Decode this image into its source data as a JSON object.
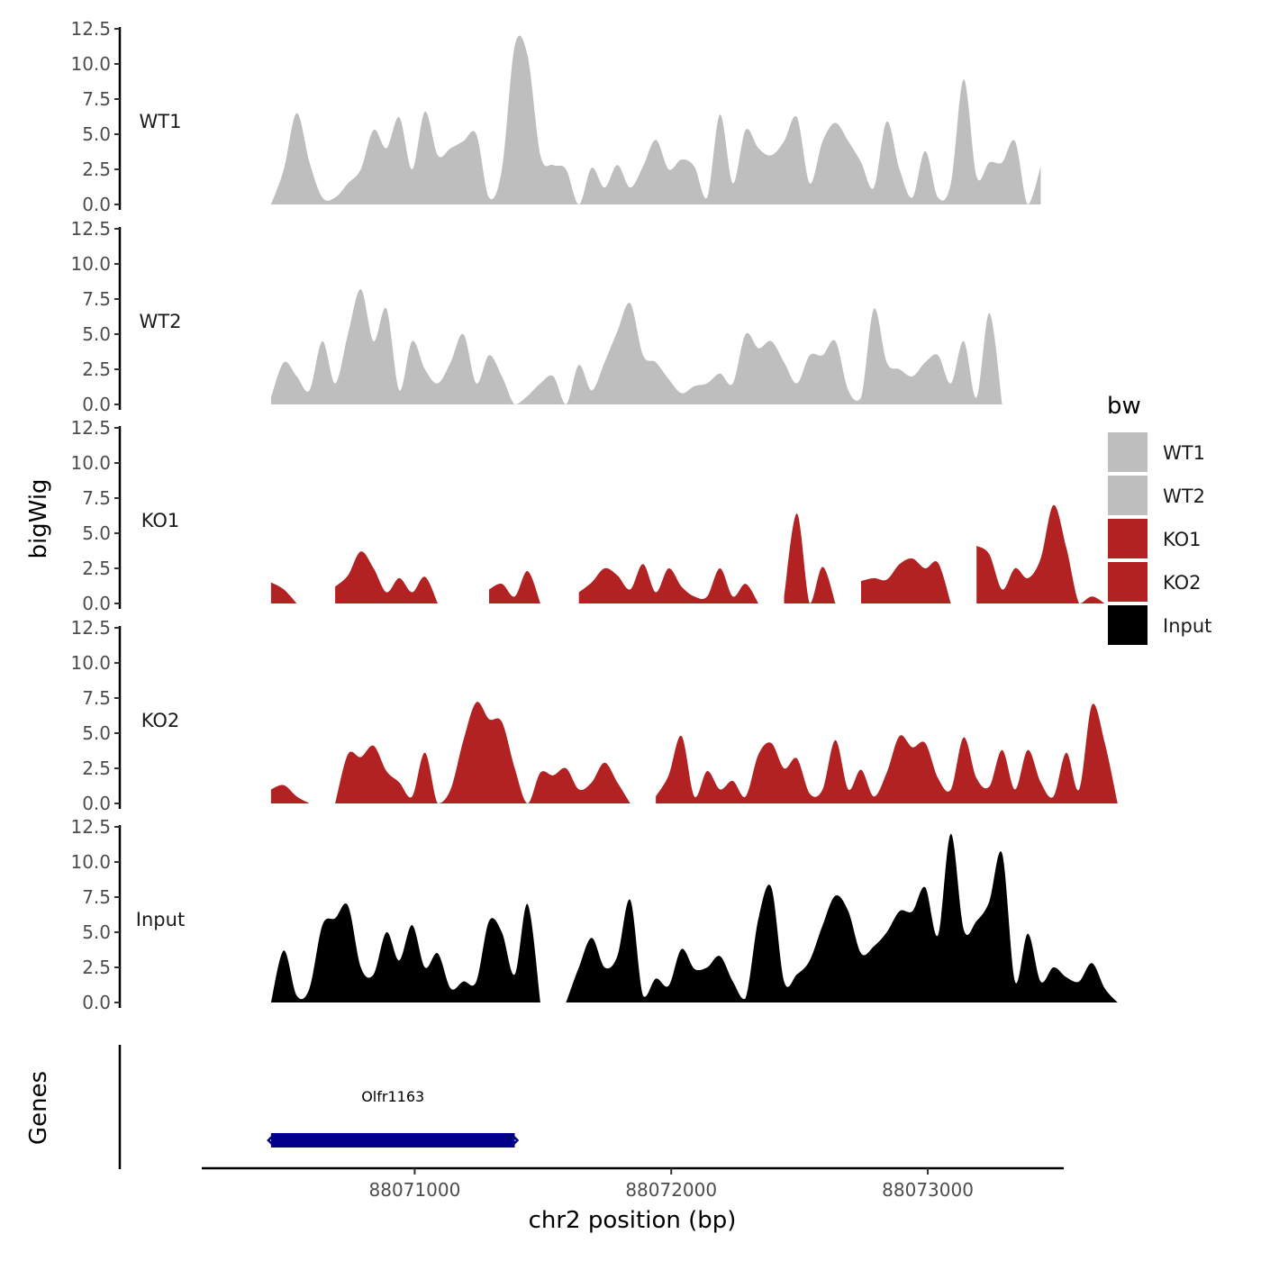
{
  "chart_data": {
    "type": "area",
    "xlabel": "chr2 position (bp)",
    "ylabel": "bigWig",
    "genes_label": "Genes",
    "xlim": [
      88070170,
      88073530
    ],
    "x_ticks": [
      {
        "value": 88071000,
        "label": "88071000"
      },
      {
        "value": 88072000,
        "label": "88072000"
      },
      {
        "value": 88073000,
        "label": "88073000"
      }
    ],
    "ylim": [
      0,
      12.5
    ],
    "y_ticks": [
      {
        "value": 0,
        "label": "0.0"
      },
      {
        "value": 2.5,
        "label": "2.5"
      },
      {
        "value": 5,
        "label": "5.0"
      },
      {
        "value": 7.5,
        "label": "7.5"
      },
      {
        "value": 10,
        "label": "10.0"
      },
      {
        "value": 12.5,
        "label": "12.5"
      }
    ],
    "legend": {
      "title": "bw",
      "items": [
        {
          "label": "WT1",
          "color": "#bebebe"
        },
        {
          "label": "WT2",
          "color": "#bebebe"
        },
        {
          "label": "KO1",
          "color": "#b22222"
        },
        {
          "label": "KO2",
          "color": "#b22222"
        },
        {
          "label": "Input",
          "color": "#000000"
        }
      ]
    },
    "series": [
      {
        "name": "WT1",
        "color": "#bebebe",
        "x_start": 88070440,
        "x_step": 50,
        "values": [
          0,
          2.5,
          6.5,
          3,
          0.5,
          0.5,
          1.5,
          2.5,
          5.3,
          4,
          6.2,
          2.5,
          6.6,
          3.5,
          4,
          4.5,
          5,
          0.5,
          2.5,
          11.3,
          10.6,
          3.5,
          2.8,
          2.5,
          0,
          2.6,
          1.2,
          2.8,
          1.2,
          2.7,
          4.6,
          2.5,
          3.2,
          2.7,
          0.5,
          6.4,
          1.5,
          5.3,
          4,
          3.5,
          4.5,
          6.2,
          1.5,
          4.5,
          5.8,
          4.5,
          3,
          1.2,
          5.9,
          2.5,
          0.5,
          3.8,
          0.5,
          1.5,
          8.9,
          2,
          3,
          3,
          4.5,
          0,
          2.7
        ]
      },
      {
        "name": "WT2",
        "color": "#bebebe",
        "x_start": 88070440,
        "x_step": 50,
        "values": [
          0.5,
          3,
          2,
          1,
          4.5,
          1.5,
          5,
          8.2,
          4.5,
          6.8,
          1,
          4.5,
          2.5,
          1.5,
          3,
          5,
          1.5,
          3.5,
          2,
          0,
          0.6,
          1.5,
          2,
          0,
          2.8,
          1,
          3,
          5.2,
          7.2,
          3.5,
          3,
          1.8,
          0.8,
          1.3,
          1.5,
          2.2,
          1.5,
          5,
          4,
          4.5,
          3,
          1.5,
          3.5,
          3.5,
          4.5,
          1,
          0.5,
          6.8,
          3,
          2.5,
          2,
          3,
          3.5,
          1.5,
          4.5,
          0.5,
          6.5,
          0
        ]
      },
      {
        "name": "KO1",
        "color": "#b22222",
        "x_start": 88070440,
        "x_step": 50,
        "values": [
          1.5,
          1,
          0,
          null,
          null,
          1.2,
          2,
          3.7,
          2.5,
          0.8,
          1.8,
          0.8,
          1.9,
          0,
          null,
          null,
          null,
          1,
          1.4,
          0.5,
          2.3,
          0,
          null,
          null,
          0.8,
          1.5,
          2.5,
          2,
          1,
          2.8,
          0.8,
          2.5,
          1.2,
          0.5,
          0.5,
          2.5,
          0.5,
          1.4,
          0,
          null,
          0.5,
          6.4,
          0,
          2.6,
          0,
          null,
          1.6,
          1.8,
          1.7,
          2.8,
          3.2,
          2.5,
          2.9,
          0,
          null,
          4.1,
          3.5,
          1,
          2.5,
          1.8,
          3.2,
          7,
          4,
          0,
          0.5,
          0,
          null,
          0.6
        ]
      },
      {
        "name": "KO2",
        "color": "#b22222",
        "x_start": 88070440,
        "x_step": 50,
        "values": [
          1,
          1.3,
          0.5,
          0,
          null,
          0,
          3.5,
          3.3,
          4.1,
          2.3,
          1.5,
          0.5,
          3.6,
          0,
          1,
          4.5,
          7.2,
          6,
          5.8,
          2.5,
          0,
          2.2,
          2,
          2.5,
          1,
          1.5,
          2.9,
          1.5,
          0,
          null,
          0.5,
          2,
          4.8,
          0.5,
          2.3,
          1,
          1.6,
          0.5,
          3.5,
          4.3,
          2.5,
          3.2,
          0.7,
          1,
          4.5,
          1,
          2.4,
          0.5,
          2.2,
          4.8,
          4,
          4.3,
          1.8,
          1,
          4.7,
          1.8,
          1.2,
          3.8,
          1,
          3.8,
          1.5,
          0.5,
          3.6,
          1,
          7,
          4.3,
          0
        ]
      },
      {
        "name": "Input",
        "color": "#000000",
        "x_start": 88070440,
        "x_step": 50,
        "values": [
          0,
          3.7,
          0.5,
          1,
          5.5,
          6,
          6.9,
          2.5,
          2,
          5,
          3,
          5.5,
          2.5,
          3.5,
          1,
          1.5,
          1.5,
          5.8,
          5,
          2,
          7,
          0,
          null,
          0,
          2.5,
          4.6,
          2.5,
          3.3,
          7.3,
          0.5,
          1.7,
          1.2,
          3.8,
          2.4,
          2.5,
          3.3,
          1.5,
          0.3,
          6,
          8.2,
          1.5,
          2,
          3,
          5.5,
          7.6,
          6.5,
          3.5,
          4,
          5,
          6.5,
          6.5,
          8.2,
          4.8,
          12,
          5.2,
          5.8,
          7.2,
          10.6,
          1.5,
          4.9,
          1.5,
          2.5,
          1.8,
          1.5,
          2.8,
          1,
          0
        ]
      }
    ],
    "genes": [
      {
        "name": "Olfr1163",
        "start": 88070440,
        "end": 88071390,
        "strand": "-",
        "color": "#00008b"
      }
    ]
  }
}
